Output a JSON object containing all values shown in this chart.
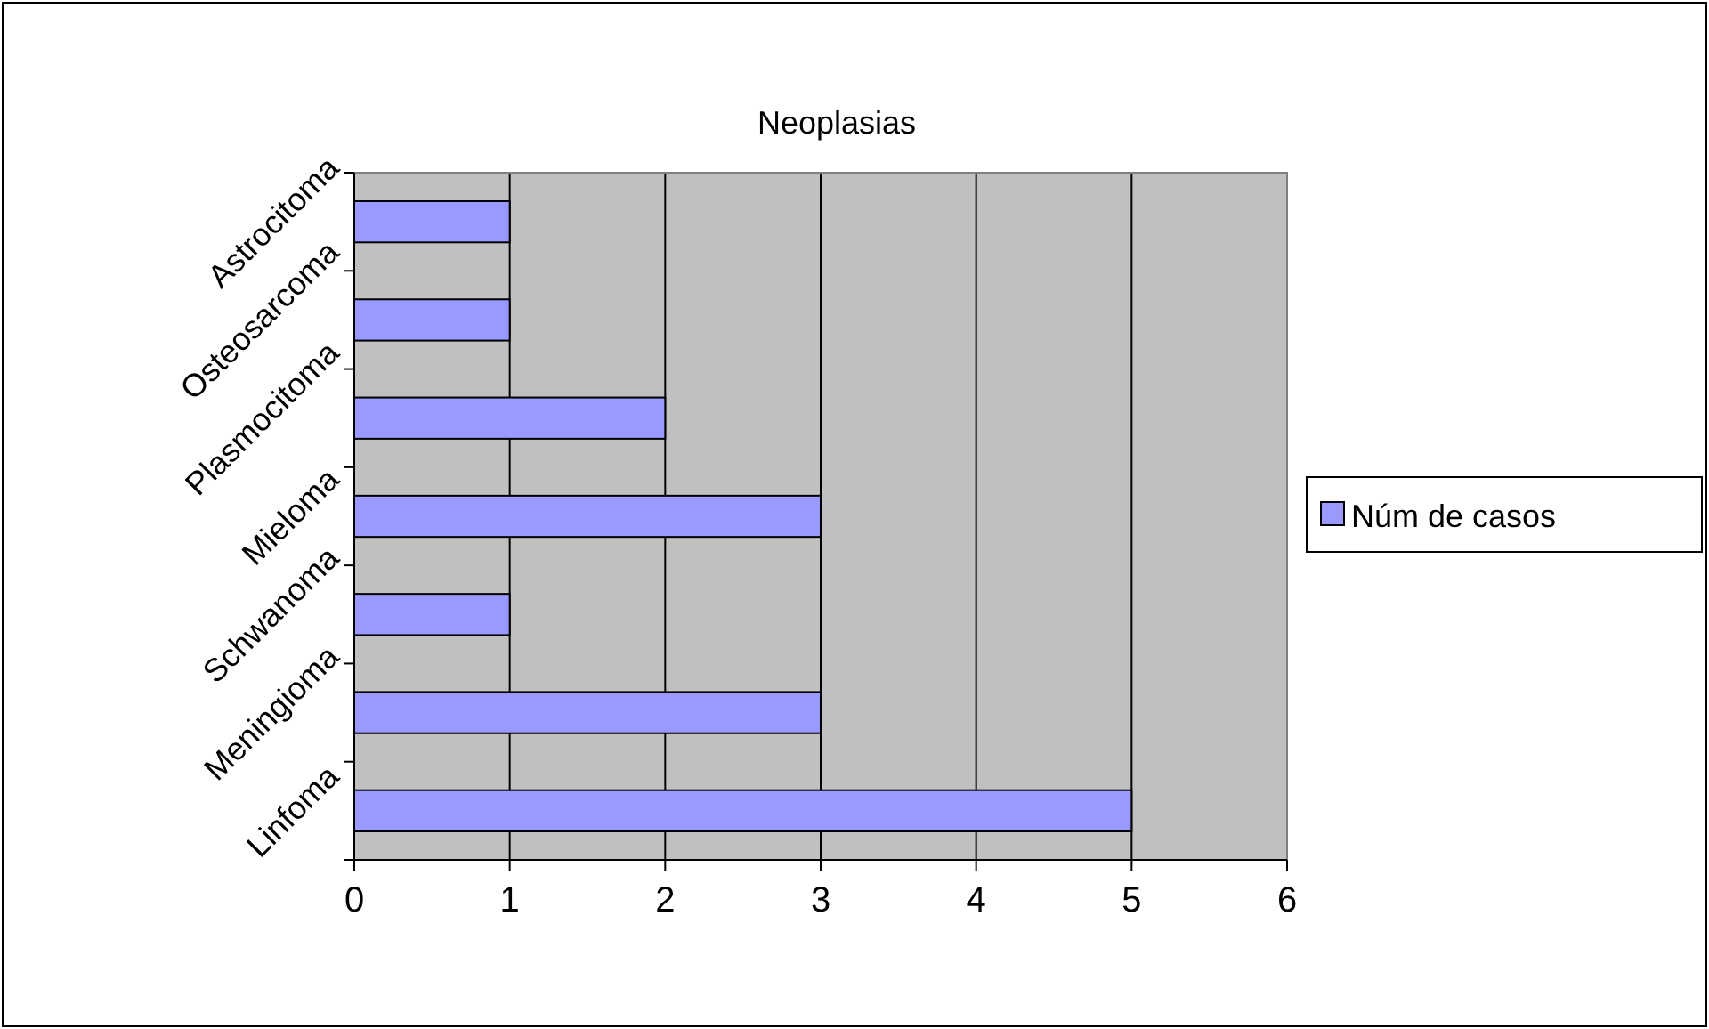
{
  "chart_data": {
    "type": "bar",
    "orientation": "horizontal",
    "title": "Neoplasias",
    "categories": [
      "Astrocitoma",
      "Osteosarcoma",
      "Plasmocitoma",
      "Mieloma",
      "Schwanoma",
      "Meningioma",
      "Linfoma"
    ],
    "series": [
      {
        "name": "Núm de casos",
        "color": "#9999ff",
        "values": [
          1,
          1,
          2,
          3,
          1,
          3,
          5
        ]
      }
    ],
    "xlim": [
      0,
      6
    ],
    "xticks": [
      0,
      1,
      2,
      3,
      4,
      5,
      6
    ],
    "grid": "x",
    "legend": "right"
  }
}
